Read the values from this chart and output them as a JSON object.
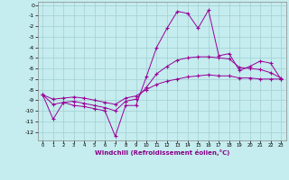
{
  "xlabel": "Windchill (Refroidissement éolien,°C)",
  "background_color": "#c5ecee",
  "grid_color": "#a0d0d4",
  "line_color": "#990099",
  "hours": [
    0,
    1,
    2,
    3,
    4,
    5,
    6,
    7,
    8,
    9,
    10,
    11,
    12,
    13,
    14,
    15,
    16,
    17,
    18,
    19,
    20,
    21,
    22,
    23
  ],
  "ylim": [
    -12.8,
    0.3
  ],
  "xlim": [
    -0.5,
    23.5
  ],
  "yticks": [
    0,
    -1,
    -2,
    -3,
    -4,
    -5,
    -6,
    -7,
    -8,
    -9,
    -10,
    -11,
    -12
  ],
  "xticks": [
    0,
    1,
    2,
    3,
    4,
    5,
    6,
    7,
    8,
    9,
    10,
    11,
    12,
    13,
    14,
    15,
    16,
    17,
    18,
    19,
    20,
    21,
    22,
    23
  ],
  "windchill_series": [
    [
      -8.5,
      -10.8,
      -9.2,
      -9.5,
      -9.6,
      -9.8,
      -10.0,
      -12.4,
      -9.5,
      -9.5,
      -6.8,
      -4.0,
      -2.2,
      -0.6,
      -0.8,
      -2.2,
      -0.5,
      -4.8,
      -4.6,
      -6.2,
      -5.8,
      -5.3,
      -5.5,
      -7.0
    ],
    [
      -8.5,
      -9.4,
      -9.2,
      -9.1,
      -9.3,
      -9.5,
      -9.7,
      -10.0,
      -9.1,
      -8.9,
      -7.8,
      -6.5,
      -5.8,
      -5.2,
      -5.0,
      -4.9,
      -4.9,
      -5.0,
      -5.1,
      -5.9,
      -6.0,
      -6.1,
      -6.4,
      -6.9
    ],
    [
      -8.5,
      -8.9,
      -8.8,
      -8.7,
      -8.8,
      -9.0,
      -9.2,
      -9.4,
      -8.8,
      -8.6,
      -8.0,
      -7.5,
      -7.2,
      -7.0,
      -6.8,
      -6.7,
      -6.6,
      -6.7,
      -6.7,
      -6.9,
      -6.9,
      -7.0,
      -7.0,
      -7.0
    ]
  ]
}
